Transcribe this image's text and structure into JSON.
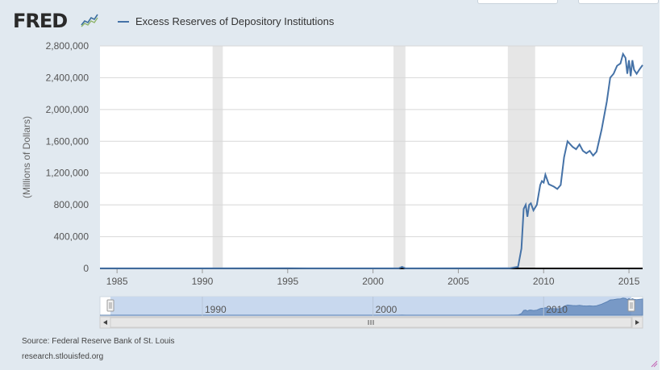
{
  "header": {
    "logo_text": "FRED",
    "legend_label": "Excess Reserves of Depository Institutions"
  },
  "colors": {
    "series": "#4572a7",
    "recession": "#e6e6e6",
    "navigator_fill": "#c8d8ee",
    "navigator_handle": "#dfe9f5"
  },
  "icons": [
    "fred-line-icon",
    "navigator-handle-icon",
    "scroll-left-arrow-icon",
    "scroll-right-arrow-icon",
    "scroll-grip-icon",
    "resize-icon"
  ],
  "chart_data": {
    "type": "line",
    "title": "",
    "xlabel": "",
    "ylabel": "(Millions of Dollars)",
    "xlim": [
      1984,
      2015.8
    ],
    "ylim": [
      0,
      2800000
    ],
    "y_ticks": [
      0,
      400000,
      800000,
      1200000,
      1600000,
      2000000,
      2400000,
      2800000
    ],
    "y_tick_labels": [
      "0",
      "400,000",
      "800,000",
      "1,200,000",
      "1,600,000",
      "2,000,000",
      "2,400,000",
      "2,800,000"
    ],
    "x_ticks": [
      1985,
      1990,
      1995,
      2000,
      2005,
      2010,
      2015
    ],
    "x_tick_labels": [
      "1985",
      "1990",
      "1995",
      "2000",
      "2005",
      "2010",
      "2015"
    ],
    "grid": true,
    "recessions": [
      [
        1990.6,
        1991.2
      ],
      [
        2001.2,
        2001.9
      ],
      [
        2007.9,
        2009.5
      ]
    ],
    "series": [
      {
        "name": "Excess Reserves of Depository Institutions",
        "x": [
          1984.0,
          1990.0,
          1995.0,
          2000.0,
          2001.5,
          2001.7,
          2001.9,
          2008.0,
          2008.5,
          2008.7,
          2008.83,
          2008.95,
          2009.05,
          2009.15,
          2009.25,
          2009.4,
          2009.6,
          2009.8,
          2009.9,
          2010.0,
          2010.1,
          2010.3,
          2010.6,
          2010.8,
          2011.0,
          2011.2,
          2011.4,
          2011.7,
          2011.9,
          2012.1,
          2012.3,
          2012.5,
          2012.7,
          2012.9,
          2013.1,
          2013.4,
          2013.7,
          2013.9,
          2014.1,
          2014.3,
          2014.5,
          2014.65,
          2014.8,
          2014.9,
          2015.0,
          2015.1,
          2015.2,
          2015.3,
          2015.45,
          2015.6,
          2015.8
        ],
        "values": [
          1000,
          1500,
          2000,
          1500,
          1500,
          19000,
          1500,
          2000,
          20000,
          250000,
          750000,
          800000,
          650000,
          800000,
          820000,
          730000,
          800000,
          1050000,
          1100000,
          1080000,
          1180000,
          1060000,
          1030000,
          1000000,
          1050000,
          1400000,
          1600000,
          1530000,
          1500000,
          1560000,
          1480000,
          1450000,
          1480000,
          1420000,
          1470000,
          1750000,
          2100000,
          2400000,
          2450000,
          2550000,
          2580000,
          2700000,
          2650000,
          2450000,
          2620000,
          2420000,
          2620000,
          2500000,
          2450000,
          2500000,
          2560000
        ]
      }
    ]
  },
  "navigator": {
    "labels": [
      "1990",
      "2000",
      "2010"
    ]
  },
  "footer": {
    "source": "Source: Federal Reserve Bank of St. Louis",
    "site": "research.stlouisfed.org"
  }
}
